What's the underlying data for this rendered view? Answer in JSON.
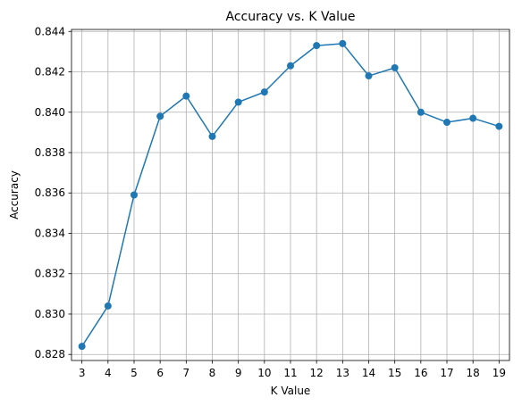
{
  "chart_data": {
    "type": "line",
    "title": "Accuracy vs. K Value",
    "xlabel": "K Value",
    "ylabel": "Accuracy",
    "x": [
      3,
      4,
      5,
      6,
      7,
      8,
      9,
      10,
      11,
      12,
      13,
      14,
      15,
      16,
      17,
      18,
      19
    ],
    "series": [
      {
        "name": "Accuracy",
        "values": [
          0.8284,
          0.8304,
          0.8359,
          0.8398,
          0.8408,
          0.8388,
          0.8405,
          0.841,
          0.8423,
          0.8433,
          0.8434,
          0.8418,
          0.8422,
          0.84,
          0.8395,
          0.8397,
          0.8393
        ],
        "color": "#1f77b4",
        "marker": "circle"
      }
    ],
    "xlim": [
      2.6,
      19.4
    ],
    "ylim": [
      0.8277,
      0.8441
    ],
    "xticks": [
      "3",
      "4",
      "5",
      "6",
      "7",
      "8",
      "9",
      "10",
      "11",
      "12",
      "13",
      "14",
      "15",
      "16",
      "17",
      "18",
      "19"
    ],
    "yticks": [
      "0.828",
      "0.830",
      "0.832",
      "0.834",
      "0.836",
      "0.838",
      "0.840",
      "0.842",
      "0.844"
    ],
    "grid": true
  }
}
